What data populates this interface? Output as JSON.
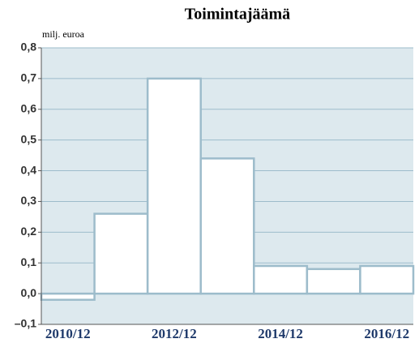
{
  "chart_data": {
    "type": "bar",
    "title": "Toimintajäämä",
    "y_label": "milj. euroa",
    "categories": [
      "2010/12",
      null,
      "2012/12",
      null,
      "2014/12",
      null,
      "2016/12"
    ],
    "values": [
      -0.02,
      0.26,
      0.7,
      0.44,
      0.09,
      0.08,
      0.09
    ],
    "color": "#ffffff",
    "edge_color": "#9dbccb",
    "background": "#dde9ee",
    "ylim": [
      -0.1,
      0.8
    ],
    "yticks": [
      {
        "value": -0.1,
        "label": "–0,1"
      },
      {
        "value": 0,
        "label": "0,0"
      },
      {
        "value": 0.1,
        "label": "0,1"
      },
      {
        "value": 0.2,
        "label": "0,2"
      },
      {
        "value": 0.3,
        "label": "0,3"
      },
      {
        "value": 0.4,
        "label": "0,4"
      },
      {
        "value": 0.5,
        "label": "0,5"
      },
      {
        "value": 0.6,
        "label": "0,6"
      },
      {
        "value": 0.7,
        "label": "0,7"
      },
      {
        "value": 0.8,
        "label": "0,8"
      }
    ],
    "grid": true
  }
}
